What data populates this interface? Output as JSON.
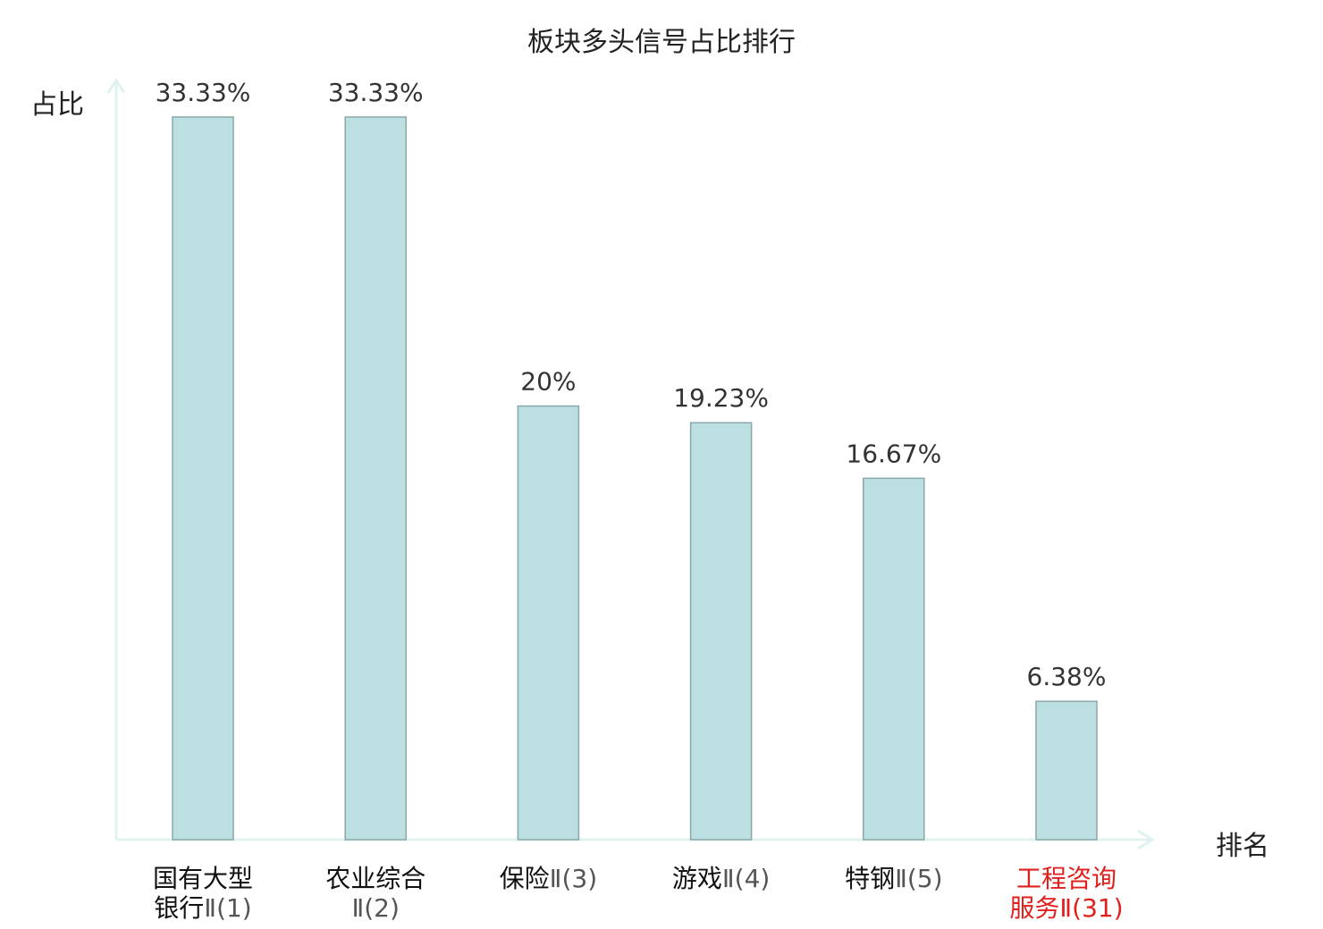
{
  "chart_data": {
    "type": "bar",
    "title": "板块多头信号占比排行",
    "ylabel": "占比",
    "xlabel": "排名",
    "categories": [
      {
        "line1": "国有大型",
        "line1_suffix": "",
        "line2": "银行Ⅱ(1)"
      },
      {
        "line1": "农业综合",
        "line1_suffix": "",
        "line2": "Ⅱ(2)"
      },
      {
        "line1": "保险",
        "line1_suffix": "Ⅱ(3)",
        "line2": ""
      },
      {
        "line1": "游戏",
        "line1_suffix": "Ⅱ(4)",
        "line2": ""
      },
      {
        "line1": "特钢",
        "line1_suffix": "Ⅱ(5)",
        "line2": ""
      },
      {
        "line1": "工程咨询",
        "line1_suffix": "",
        "line2": "服务Ⅱ(31)"
      }
    ],
    "values": [
      33.33,
      33.33,
      20,
      19.23,
      16.67,
      6.38
    ],
    "value_labels": [
      "33.33%",
      "33.33%",
      "20%",
      "19.23%",
      "16.67%",
      "6.38%"
    ],
    "highlight_index": 5,
    "ylim": [
      0,
      33.33
    ],
    "grid": false,
    "legend": "none",
    "colors": {
      "bar_fill": "#bce0e2",
      "bar_stroke": "#8aa8aa",
      "axis": "#e0f2f0",
      "highlight_text": "#e0201c",
      "label_text": "#333333"
    }
  }
}
